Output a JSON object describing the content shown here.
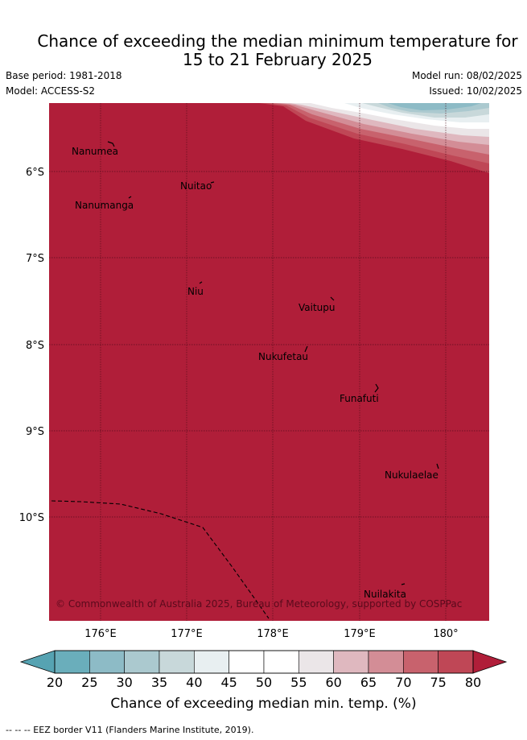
{
  "title_line1": "Chance of exceeding the median minimum temperature for",
  "title_line2": "15 to 21 February 2025",
  "base_period": "Base period: 1981-2018",
  "model": "Model: ACCESS-S2",
  "model_run": "Model run: 08/02/2025",
  "issued": "Issued: 10/02/2025",
  "copyright": "© Commonwealth of Australia 2025, Bureau of Meteorology, supported by COSPPac",
  "lat_labels": [
    "6°S",
    "7°S",
    "8°S",
    "9°S",
    "10°S"
  ],
  "lon_labels": [
    "176°E",
    "177°E",
    "178°E",
    "179°E",
    "180°"
  ],
  "islands": [
    {
      "name": "Nanumea"
    },
    {
      "name": "Nuitao"
    },
    {
      "name": "Nanumanga"
    },
    {
      "name": "Niu"
    },
    {
      "name": "Vaitupu"
    },
    {
      "name": "Nukufetau"
    },
    {
      "name": "Funafuti"
    },
    {
      "name": "Nukulaelae"
    },
    {
      "name": "Nuilakita"
    }
  ],
  "colorbar": {
    "ticks": [
      "20",
      "25",
      "30",
      "35",
      "40",
      "45",
      "50",
      "55",
      "60",
      "65",
      "70",
      "75",
      "80"
    ],
    "colors": [
      "#6aaebb",
      "#8dbbc6",
      "#abc9cf",
      "#c8d8da",
      "#e8eff1",
      "#ffffff",
      "#ffffff",
      "#ebe6e8",
      "#dfb8bf",
      "#d38d96",
      "#c8626d",
      "#bf4756",
      "#b01e39"
    ],
    "title": "Chance of exceeding median min. temp. (%)"
  },
  "footnote": "-- -- -- EEZ border V11 (Flanders Marine Institute, 2019).",
  "colors": {
    "dominant": "#b01e39"
  }
}
